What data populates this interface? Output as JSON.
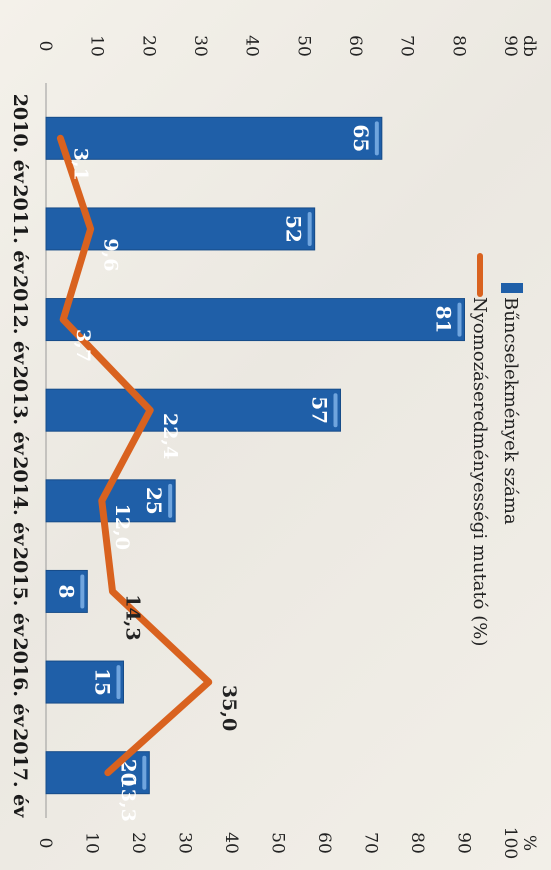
{
  "chart_data": {
    "type": "bar",
    "categories": [
      "2010. év",
      "2011. év",
      "2012. év",
      "2013. év",
      "2014. év",
      "2015. év",
      "2016. év",
      "2017. év"
    ],
    "series": [
      {
        "name": "Bűncselekmények száma",
        "type": "bar",
        "axis": "left",
        "values": [
          65,
          52,
          81,
          57,
          25,
          8,
          15,
          20
        ],
        "color": "#1f5fa8"
      },
      {
        "name": "Nyomozáseredményességi mutató (%)",
        "type": "line",
        "axis": "right",
        "values": [
          3.1,
          9.6,
          3.7,
          22.4,
          12.0,
          14.3,
          35.0,
          13.3
        ],
        "color": "#d9621f"
      }
    ],
    "bar_labels": [
      "65",
      "52",
      "81",
      "57",
      "25",
      "8",
      "15",
      "20"
    ],
    "line_labels": [
      "3,1",
      "9,6",
      "3,7",
      "22,4",
      "12,0",
      "14,3",
      "35,0",
      "13,3"
    ],
    "left_axis": {
      "unit": "db",
      "min": 0,
      "max": 90,
      "ticks": [
        "0",
        "10",
        "20",
        "30",
        "40",
        "50",
        "60",
        "70",
        "80",
        "90"
      ]
    },
    "right_axis": {
      "unit": "%",
      "min": 0,
      "max": 100,
      "ticks": [
        "0",
        "10",
        "20",
        "30",
        "40",
        "50",
        "60",
        "70",
        "80",
        "90",
        "100"
      ]
    },
    "legend_position": "top",
    "grid": false
  }
}
